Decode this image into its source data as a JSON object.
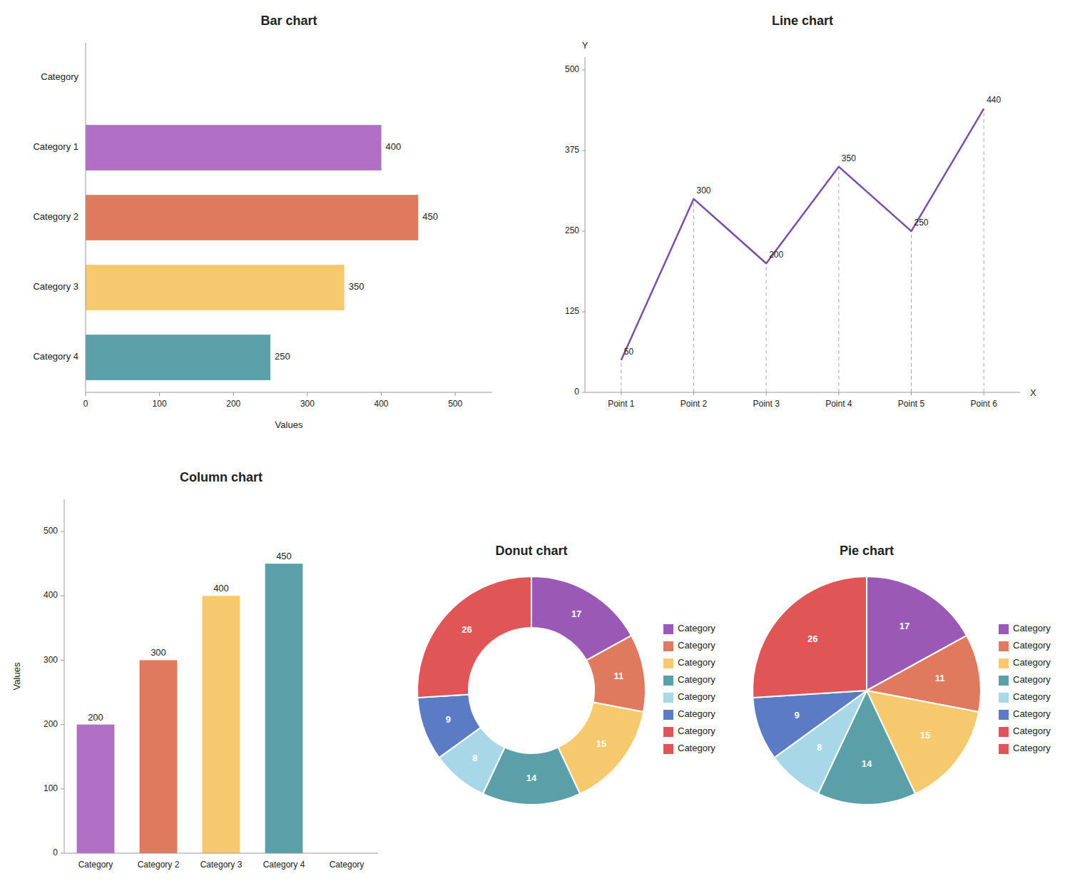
{
  "chart_data": [
    {
      "type": "bar",
      "orientation": "horizontal",
      "title": "Bar chart",
      "categories": [
        "Category",
        "Category 1",
        "Category 2",
        "Category 3",
        "Category 4"
      ],
      "values": [
        null,
        400,
        450,
        350,
        250
      ],
      "colors": [
        null,
        "#b06fc4",
        "#e07a5f",
        "#f7c96e",
        "#5b9fa8"
      ],
      "xlabel": "Values",
      "xlim": [
        0,
        550
      ],
      "xticks": [
        0,
        100,
        200,
        300,
        400,
        500
      ],
      "data_labels": true
    },
    {
      "type": "line",
      "title": "Line chart",
      "xlabel": "X",
      "ylabel": "Y",
      "categories": [
        "Point 1",
        "Point 2",
        "Point 3",
        "Point 4",
        "Point 5",
        "Point 6"
      ],
      "values": [
        50,
        300,
        200,
        350,
        250,
        440
      ],
      "color": "#7b4fa6",
      "ylim": [
        0,
        520
      ],
      "yticks": [
        0,
        125,
        250,
        375,
        500
      ],
      "data_labels": true
    },
    {
      "type": "bar",
      "title": "Column chart",
      "categories": [
        "Category",
        "Category 2",
        "Category 3",
        "Category 4",
        "Category"
      ],
      "values": [
        200,
        300,
        400,
        450,
        null
      ],
      "colors": [
        "#b06fc4",
        "#e07a5f",
        "#f7c96e",
        "#5b9fa8",
        null
      ],
      "ylabel": "Values",
      "ylim": [
        0,
        550
      ],
      "yticks": [
        0,
        100,
        200,
        300,
        400,
        500
      ],
      "data_labels": true
    },
    {
      "type": "donut",
      "title": "Donut chart",
      "categories": [
        "Category",
        "Category",
        "Category",
        "Category",
        "Category",
        "Category",
        "Category",
        "Category"
      ],
      "values": [
        17,
        11,
        15,
        14,
        8,
        9,
        26,
        null
      ],
      "colors": [
        "#9b59b6",
        "#e07a5f",
        "#f7c96e",
        "#5b9fa8",
        "#a8d8e8",
        "#5b7cc4",
        "#e05555",
        "#e05555"
      ],
      "legend": "right",
      "data_labels": true
    },
    {
      "type": "pie",
      "title": "Pie chart",
      "categories": [
        "Category",
        "Category",
        "Category",
        "Category",
        "Category",
        "Category",
        "Category",
        "Category"
      ],
      "values": [
        17,
        11,
        15,
        14,
        8,
        9,
        26,
        null
      ],
      "colors": [
        "#9b59b6",
        "#e07a5f",
        "#f7c96e",
        "#5b9fa8",
        "#a8d8e8",
        "#5b7cc4",
        "#e05555",
        "#e05555"
      ],
      "legend": "right",
      "data_labels": true
    }
  ]
}
